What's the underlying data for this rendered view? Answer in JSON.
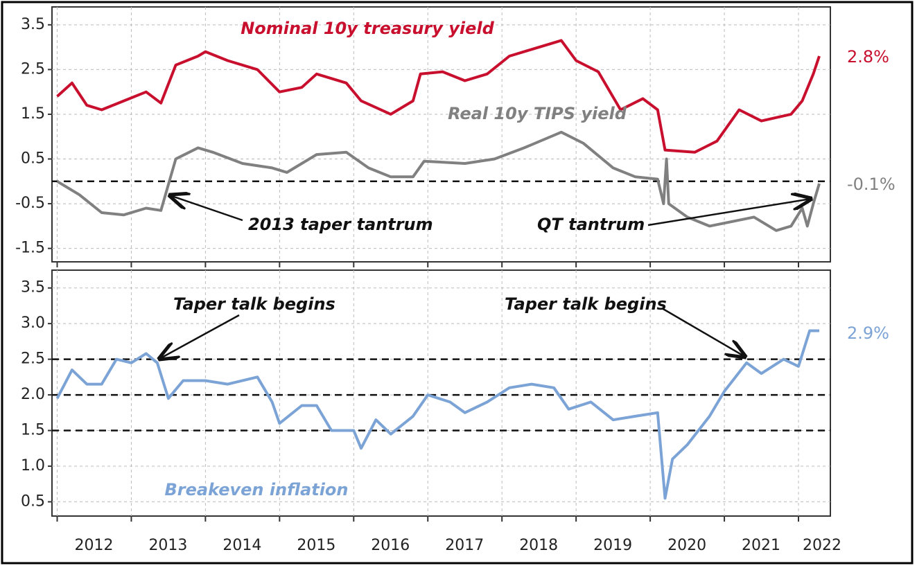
{
  "chart_data": [
    {
      "type": "line",
      "xlim": [
        2011.93,
        2022.43
      ],
      "xticks": [
        2012,
        2013,
        2014,
        2015,
        2016,
        2017,
        2018,
        2019,
        2020,
        2021,
        2022
      ],
      "ylim": [
        -1.8,
        3.9
      ],
      "yticks": [
        3.5,
        2.5,
        1.5,
        0.5,
        -0.5,
        -1.5
      ],
      "grid": true,
      "reference_lines": [
        0
      ],
      "series": [
        {
          "name": "Nominal 10y treasury yield",
          "color": "#c8102e",
          "end_label": "2.8%",
          "x": [
            2012.0,
            2012.2,
            2012.4,
            2012.6,
            2012.9,
            2013.2,
            2013.4,
            2013.6,
            2013.9,
            2014.0,
            2014.3,
            2014.7,
            2015.0,
            2015.3,
            2015.5,
            2015.9,
            2016.1,
            2016.5,
            2016.8,
            2016.9,
            2017.2,
            2017.5,
            2017.8,
            2018.1,
            2018.4,
            2018.8,
            2019.0,
            2019.3,
            2019.6,
            2019.9,
            2020.1,
            2020.2,
            2020.6,
            2020.9,
            2021.2,
            2021.5,
            2021.9,
            2022.05,
            2022.2,
            2022.28
          ],
          "values": [
            1.9,
            2.2,
            1.7,
            1.6,
            1.8,
            2.0,
            1.75,
            2.6,
            2.8,
            2.9,
            2.7,
            2.5,
            2.0,
            2.1,
            2.4,
            2.2,
            1.8,
            1.5,
            1.8,
            2.4,
            2.45,
            2.25,
            2.4,
            2.8,
            2.95,
            3.15,
            2.7,
            2.45,
            1.6,
            1.85,
            1.6,
            0.7,
            0.65,
            0.9,
            1.6,
            1.35,
            1.5,
            1.8,
            2.4,
            2.8
          ]
        },
        {
          "name": "Real 10y TIPS yield",
          "color": "#808080",
          "end_label": "-0.1%",
          "x": [
            2012.0,
            2012.3,
            2012.6,
            2012.9,
            2013.2,
            2013.4,
            2013.6,
            2013.9,
            2014.1,
            2014.5,
            2014.9,
            2015.1,
            2015.5,
            2015.9,
            2016.2,
            2016.5,
            2016.8,
            2016.95,
            2017.5,
            2017.9,
            2018.3,
            2018.8,
            2019.1,
            2019.5,
            2019.8,
            2020.1,
            2020.18,
            2020.22,
            2020.25,
            2020.5,
            2020.8,
            2021.1,
            2021.4,
            2021.7,
            2021.9,
            2022.05,
            2022.12,
            2022.2,
            2022.28
          ],
          "values": [
            0.0,
            -0.3,
            -0.7,
            -0.75,
            -0.6,
            -0.65,
            0.5,
            0.75,
            0.65,
            0.4,
            0.3,
            0.2,
            0.6,
            0.65,
            0.3,
            0.1,
            0.1,
            0.45,
            0.4,
            0.5,
            0.75,
            1.1,
            0.85,
            0.3,
            0.1,
            0.05,
            -0.5,
            0.5,
            -0.5,
            -0.8,
            -1.0,
            -0.9,
            -0.8,
            -1.1,
            -1.0,
            -0.6,
            -1.0,
            -0.5,
            -0.05
          ]
        }
      ],
      "annotations": [
        "2013 taper tantrum",
        "QT tantrum"
      ]
    },
    {
      "type": "line",
      "xlim": [
        2011.93,
        2022.43
      ],
      "xticks": [
        2012,
        2013,
        2014,
        2015,
        2016,
        2017,
        2018,
        2019,
        2020,
        2021,
        2022
      ],
      "ylim": [
        0.3,
        3.75
      ],
      "yticks": [
        3.5,
        {
          "value": 3.0,
          "label": "3.0"
        },
        2.5,
        {
          "value": 2.0,
          "label": "2.0"
        },
        1.5,
        {
          "value": 1.0,
          "label": "1.0"
        },
        0.5
      ],
      "grid": true,
      "reference_lines": [
        2.5,
        2.0,
        1.5
      ],
      "series": [
        {
          "name": "Breakeven inflation",
          "color": "#7ba3d6",
          "end_label": "2.9%",
          "x": [
            2012.0,
            2012.2,
            2012.4,
            2012.6,
            2012.8,
            2013.0,
            2013.2,
            2013.35,
            2013.5,
            2013.7,
            2014.0,
            2014.3,
            2014.7,
            2014.9,
            2015.0,
            2015.3,
            2015.5,
            2015.7,
            2016.0,
            2016.1,
            2016.3,
            2016.5,
            2016.8,
            2017.0,
            2017.3,
            2017.5,
            2017.8,
            2018.1,
            2018.4,
            2018.7,
            2018.9,
            2019.2,
            2019.5,
            2019.8,
            2020.1,
            2020.2,
            2020.3,
            2020.5,
            2020.8,
            2021.0,
            2021.3,
            2021.5,
            2021.8,
            2022.0,
            2022.15,
            2022.28
          ],
          "values": [
            1.95,
            2.35,
            2.15,
            2.15,
            2.5,
            2.45,
            2.58,
            2.45,
            1.95,
            2.2,
            2.2,
            2.15,
            2.25,
            1.9,
            1.6,
            1.85,
            1.85,
            1.5,
            1.5,
            1.25,
            1.65,
            1.45,
            1.7,
            2.0,
            1.9,
            1.75,
            1.9,
            2.1,
            2.15,
            2.1,
            1.8,
            1.9,
            1.65,
            1.7,
            1.75,
            0.55,
            1.1,
            1.3,
            1.7,
            2.05,
            2.45,
            2.3,
            2.5,
            2.4,
            2.9,
            2.9
          ]
        }
      ],
      "annotations": [
        "Taper talk begins",
        "Taper talk begins"
      ]
    }
  ]
}
